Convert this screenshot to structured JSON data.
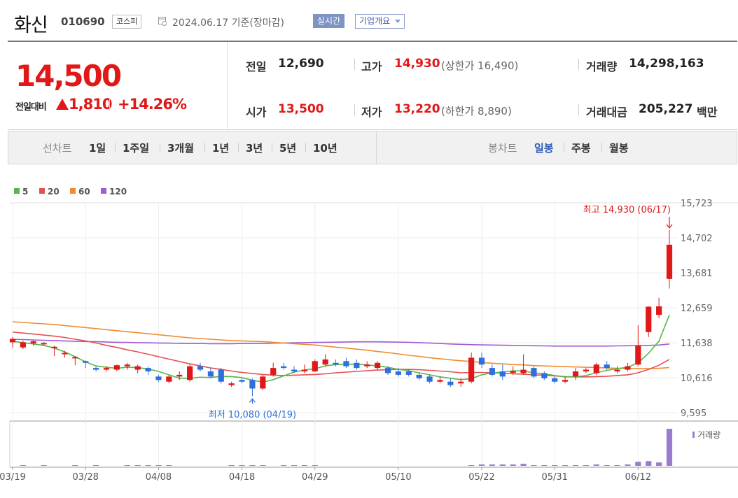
{
  "header": {
    "name": "화신",
    "code": "010690",
    "market": "코스피",
    "date": "2024.06.17 기준(장마감)",
    "realtime_btn": "실시간",
    "overview_btn": "기업개요"
  },
  "price": {
    "current": "14,500",
    "change_label": "전일대비",
    "change": "1,810",
    "change_pct": "+14.26%"
  },
  "info": {
    "prev_label": "전일",
    "prev": "12,690",
    "high_label": "고가",
    "high": "14,930",
    "upper_limit": "(상한가 16,490)",
    "volume_label": "거래량",
    "volume": "14,298,163",
    "open_label": "시가",
    "open": "13,500",
    "low_label": "저가",
    "low": "13,220",
    "lower_limit": "(하한가 8,890)",
    "amount_label": "거래대금",
    "amount": "205,227",
    "amount_unit": "백만"
  },
  "tabs": {
    "line_label": "선차트",
    "line_periods": [
      "1일",
      "1주일",
      "3개월",
      "1년",
      "3년",
      "5년",
      "10년"
    ],
    "candle_label": "봉차트",
    "candle_periods": [
      "일봉",
      "주봉",
      "월봉"
    ],
    "candle_selected": "일봉"
  },
  "colors": {
    "up": "#e01818",
    "down": "#2f6fdd",
    "accent": "#2f5cb7"
  },
  "chart_data": {
    "type": "candlestick",
    "legend": [
      {
        "label": "5",
        "color": "#56b84a"
      },
      {
        "label": "20",
        "color": "#e55050"
      },
      {
        "label": "60",
        "color": "#f08c30"
      },
      {
        "label": "120",
        "color": "#a05cd0"
      }
    ],
    "y_ticks": [
      "15,723",
      "14,702",
      "13,681",
      "12,659",
      "11,638",
      "10,616",
      "9,595"
    ],
    "y_tick_values": [
      15723,
      14702,
      13681,
      12659,
      11638,
      10616,
      9595
    ],
    "ylim": [
      9595,
      15723
    ],
    "x_labels": [
      "03/19",
      "03/28",
      "04/08",
      "04/18",
      "04/29",
      "05/10",
      "05/22",
      "05/31",
      "06/12"
    ],
    "x_label_index": [
      0,
      7,
      14,
      22,
      29,
      37,
      45,
      52,
      60
    ],
    "high_annotation": "최고 14,930 (06/17)",
    "low_annotation": "최저 10,080 (04/19)",
    "volume_label": "거래량",
    "candles": [
      [
        11650,
        11750,
        11500,
        11800
      ],
      [
        11500,
        11650,
        11450,
        11700
      ],
      [
        11620,
        11680,
        11550,
        11720
      ],
      [
        11600,
        11630,
        11550,
        11660
      ],
      [
        11480,
        11520,
        11250,
        11550
      ],
      [
        11300,
        11340,
        11200,
        11400
      ],
      [
        11180,
        11220,
        10980,
        11250
      ],
      [
        11100,
        11050,
        10900,
        11120
      ],
      [
        10900,
        10850,
        10800,
        10950
      ],
      [
        10850,
        10900,
        10800,
        10950
      ],
      [
        10850,
        10980,
        10800,
        11000
      ],
      [
        10950,
        11000,
        10850,
        11050
      ],
      [
        10850,
        10950,
        10750,
        11000
      ],
      [
        10900,
        10800,
        10700,
        10950
      ],
      [
        10650,
        10550,
        10500,
        10700
      ],
      [
        10500,
        10650,
        10450,
        10700
      ],
      [
        10650,
        10700,
        10550,
        10800
      ],
      [
        10550,
        10950,
        10500,
        11000
      ],
      [
        10950,
        10850,
        10800,
        11050
      ],
      [
        10800,
        10650,
        10600,
        10900
      ],
      [
        10850,
        10500,
        10450,
        10900
      ],
      [
        10400,
        10450,
        10350,
        10500
      ],
      [
        10550,
        10500,
        10450,
        10600
      ],
      [
        10550,
        10300,
        10080,
        10600
      ],
      [
        10300,
        10650,
        10250,
        10700
      ],
      [
        10700,
        10900,
        10650,
        11050
      ],
      [
        10950,
        10900,
        10850,
        11050
      ],
      [
        10850,
        10800,
        10750,
        10950
      ],
      [
        10800,
        10850,
        10750,
        11000
      ],
      [
        10800,
        11100,
        10780,
        11150
      ],
      [
        11000,
        11150,
        10950,
        11300
      ],
      [
        11050,
        11000,
        10950,
        11150
      ],
      [
        11100,
        10950,
        10900,
        11200
      ],
      [
        11050,
        10900,
        10850,
        11150
      ],
      [
        10950,
        11000,
        10900,
        11100
      ],
      [
        10900,
        11050,
        10850,
        11100
      ],
      [
        10900,
        10750,
        10700,
        10950
      ],
      [
        10800,
        10700,
        10650,
        10900
      ],
      [
        10800,
        10700,
        10650,
        10850
      ],
      [
        10700,
        10600,
        10550,
        10750
      ],
      [
        10650,
        10500,
        10450,
        10700
      ],
      [
        10500,
        10550,
        10450,
        10650
      ],
      [
        10500,
        10400,
        10350,
        10600
      ],
      [
        10450,
        10500,
        10350,
        10600
      ],
      [
        10500,
        11200,
        10450,
        11350
      ],
      [
        11200,
        11000,
        10900,
        11350
      ],
      [
        10900,
        10700,
        10650,
        11000
      ],
      [
        10800,
        10650,
        10550,
        11000
      ],
      [
        10800,
        10800,
        10700,
        10950
      ],
      [
        10750,
        10850,
        10700,
        11300
      ],
      [
        10900,
        10650,
        10600,
        10950
      ],
      [
        10750,
        10600,
        10550,
        10800
      ],
      [
        10600,
        10500,
        10450,
        10650
      ],
      [
        10500,
        10550,
        10450,
        10650
      ],
      [
        10650,
        10800,
        10550,
        10900
      ],
      [
        10800,
        10850,
        10750,
        10900
      ],
      [
        10750,
        11000,
        10700,
        11050
      ],
      [
        11000,
        10900,
        10850,
        11100
      ],
      [
        10800,
        10850,
        10750,
        10950
      ],
      [
        10850,
        10950,
        10800,
        11050
      ],
      [
        11000,
        11550,
        10950,
        12150
      ],
      [
        11950,
        12690,
        11800,
        12700
      ],
      [
        12450,
        12700,
        12350,
        12950
      ],
      [
        13500,
        14500,
        13220,
        14930
      ]
    ],
    "volumes": [
      0,
      1,
      0,
      1,
      0,
      0,
      1,
      0,
      1,
      0,
      0,
      1,
      1,
      1,
      1,
      1,
      0,
      0,
      0,
      0,
      0,
      1,
      1,
      1,
      1,
      0,
      1,
      1,
      1,
      1,
      0,
      0,
      0,
      0,
      0,
      0,
      0,
      0,
      0,
      0,
      0,
      0,
      0,
      0,
      1,
      2,
      2,
      2,
      2,
      3,
      1,
      1,
      1,
      1,
      1,
      1,
      2,
      1,
      1,
      2,
      6,
      7,
      5,
      55
    ],
    "ma5": [
      11680,
      11640,
      11600,
      11560,
      11480,
      11370,
      11230,
      11080,
      10960,
      10920,
      10890,
      10920,
      10910,
      10870,
      10800,
      10700,
      10600,
      10600,
      10630,
      10620,
      10660,
      10650,
      10620,
      10540,
      10490,
      10560,
      10670,
      10780,
      10840,
      10880,
      10960,
      11000,
      11010,
      11010,
      10990,
      10960,
      10920,
      10860,
      10820,
      10760,
      10700,
      10640,
      10600,
      10560,
      10590,
      10700,
      10760,
      10780,
      10820,
      10810,
      10760,
      10730,
      10680,
      10640,
      10640,
      10680,
      10760,
      10830,
      10880,
      10920,
      11050,
      11330,
      11680,
      12450
    ],
    "ma20": [
      11950,
      11920,
      11890,
      11860,
      11830,
      11790,
      11740,
      11690,
      11630,
      11560,
      11500,
      11430,
      11370,
      11300,
      11230,
      11160,
      11090,
      11020,
      10960,
      10900,
      10860,
      10810,
      10770,
      10740,
      10710,
      10690,
      10680,
      10690,
      10700,
      10710,
      10730,
      10760,
      10780,
      10800,
      10820,
      10840,
      10850,
      10860,
      10860,
      10850,
      10830,
      10810,
      10790,
      10760,
      10770,
      10770,
      10760,
      10750,
      10730,
      10720,
      10700,
      10690,
      10670,
      10650,
      10640,
      10640,
      10650,
      10660,
      10680,
      10700,
      10760,
      10860,
      10980,
      11150
    ],
    "ma60": [
      12250,
      12230,
      12210,
      12190,
      12170,
      12140,
      12110,
      12080,
      12050,
      12020,
      11990,
      11960,
      11930,
      11900,
      11870,
      11840,
      11810,
      11780,
      11760,
      11740,
      11720,
      11700,
      11690,
      11680,
      11670,
      11650,
      11630,
      11610,
      11590,
      11570,
      11540,
      11510,
      11480,
      11450,
      11420,
      11380,
      11350,
      11310,
      11270,
      11240,
      11200,
      11170,
      11140,
      11110,
      11090,
      11060,
      11040,
      11020,
      11000,
      10990,
      10970,
      10960,
      10950,
      10940,
      10930,
      10920,
      10910,
      10900,
      10890,
      10880,
      10880,
      10880,
      10890,
      10910
    ],
    "ma120": [
      11740,
      11730,
      11720,
      11710,
      11700,
      11690,
      11680,
      11675,
      11670,
      11660,
      11650,
      11645,
      11640,
      11635,
      11630,
      11625,
      11620,
      11615,
      11615,
      11610,
      11610,
      11610,
      11615,
      11615,
      11620,
      11625,
      11630,
      11635,
      11640,
      11645,
      11650,
      11655,
      11660,
      11665,
      11665,
      11665,
      11660,
      11655,
      11650,
      11640,
      11630,
      11615,
      11600,
      11590,
      11580,
      11575,
      11570,
      11565,
      11560,
      11555,
      11550,
      11545,
      11540,
      11540,
      11540,
      11540,
      11540,
      11540,
      11545,
      11550,
      11555,
      11560,
      11570,
      11600
    ]
  }
}
